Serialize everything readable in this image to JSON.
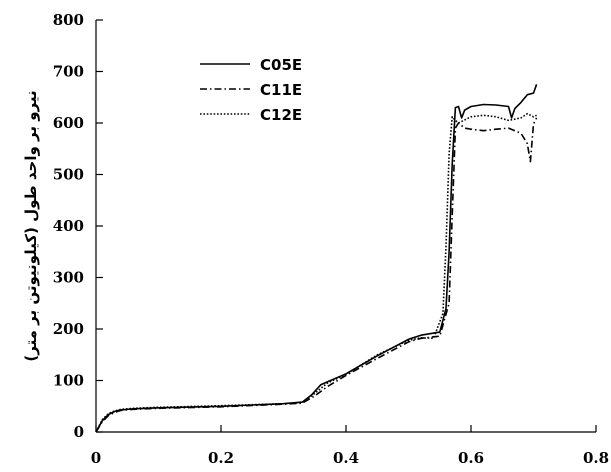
{
  "chart_data": {
    "type": "line",
    "title": "",
    "xlabel": "",
    "ylabel": "نیرو بر واحد طول (کیلونیوتن بر متر)",
    "xlim": [
      0,
      0.8
    ],
    "ylim": [
      0,
      800
    ],
    "x_ticks": [
      "0",
      "0.2",
      "0.4",
      "0.6",
      "0.8"
    ],
    "y_ticks": [
      "0",
      "100",
      "200",
      "300",
      "400",
      "500",
      "600",
      "700",
      "800"
    ],
    "grid": false,
    "legend_position": "top-left",
    "series": [
      {
        "name": "C05E",
        "dash": "solid",
        "x": [
          0,
          0.01,
          0.02,
          0.03,
          0.04,
          0.06,
          0.1,
          0.2,
          0.3,
          0.33,
          0.345,
          0.36,
          0.4,
          0.45,
          0.5,
          0.52,
          0.55,
          0.56,
          0.565,
          0.57,
          0.575,
          0.58,
          0.585,
          0.59,
          0.6,
          0.62,
          0.64,
          0.66,
          0.665,
          0.67,
          0.68,
          0.69,
          0.7,
          0.705
        ],
        "y": [
          0,
          22,
          34,
          40,
          43,
          45,
          47,
          50,
          55,
          58,
          72,
          92,
          113,
          148,
          180,
          188,
          194,
          240,
          350,
          520,
          630,
          632,
          610,
          625,
          632,
          636,
          635,
          632,
          610,
          628,
          640,
          655,
          658,
          675
        ]
      },
      {
        "name": "C11E",
        "dash": "dashdot",
        "x": [
          0,
          0.01,
          0.02,
          0.03,
          0.04,
          0.06,
          0.1,
          0.2,
          0.3,
          0.33,
          0.35,
          0.37,
          0.4,
          0.45,
          0.5,
          0.52,
          0.55,
          0.565,
          0.57,
          0.575,
          0.58,
          0.59,
          0.6,
          0.62,
          0.64,
          0.66,
          0.68,
          0.69,
          0.695,
          0.7,
          0.705
        ],
        "y": [
          0,
          20,
          32,
          38,
          42,
          44,
          46,
          49,
          54,
          56,
          70,
          88,
          110,
          143,
          175,
          182,
          186,
          250,
          420,
          590,
          600,
          590,
          588,
          585,
          588,
          590,
          580,
          560,
          525,
          598,
          610
        ]
      },
      {
        "name": "C12E",
        "dash": "dotted",
        "x": [
          0,
          0.01,
          0.02,
          0.03,
          0.04,
          0.06,
          0.1,
          0.2,
          0.3,
          0.33,
          0.35,
          0.37,
          0.4,
          0.45,
          0.5,
          0.52,
          0.54,
          0.555,
          0.56,
          0.565,
          0.57,
          0.575,
          0.58,
          0.6,
          0.62,
          0.64,
          0.66,
          0.68,
          0.69,
          0.7,
          0.705
        ],
        "y": [
          0,
          24,
          36,
          41,
          44,
          46,
          48,
          51,
          55,
          57,
          75,
          95,
          112,
          150,
          178,
          183,
          182,
          230,
          360,
          540,
          612,
          605,
          600,
          612,
          615,
          612,
          605,
          610,
          618,
          612,
          615
        ]
      }
    ]
  }
}
